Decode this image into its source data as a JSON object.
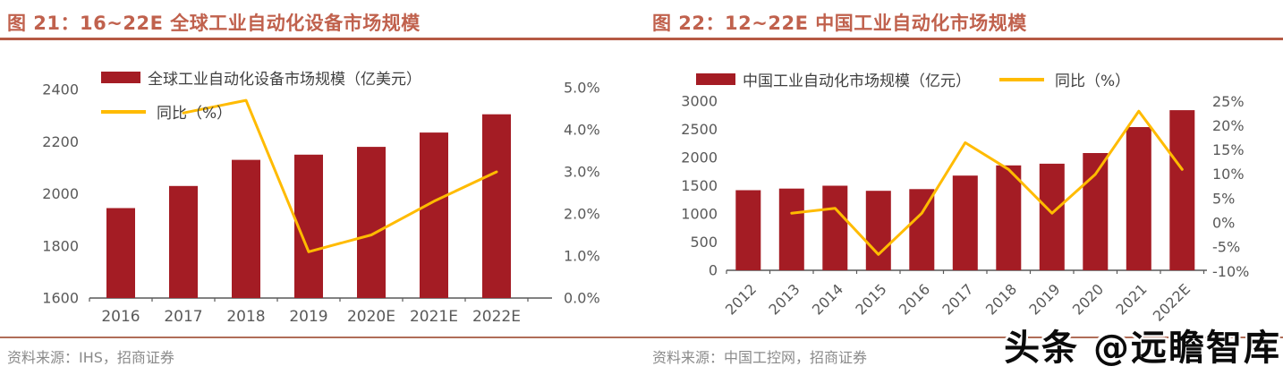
{
  "page": {
    "watermark": "头条 @远瞻智库"
  },
  "colors": {
    "bar": "#a41c24",
    "line": "#ffbb00",
    "title": "#c0614d",
    "title_rule": "#b55a44",
    "axis": "#595959",
    "source_text": "#8a8a8a",
    "source_rule": "#b06d58"
  },
  "charts": [
    {
      "title": "图 21：16~22E 全球工业自动化设备市场规模",
      "source": "资料来源：IHS，招商证券",
      "legend": {
        "bar": "全球工业自动化设备市场规模（亿美元）",
        "line": "同比（%）"
      },
      "chart_data": {
        "type": "bar",
        "categories": [
          "2016",
          "2017",
          "2018",
          "2019",
          "2020E",
          "2021E",
          "2022E"
        ],
        "series": [
          {
            "name": "全球工业自动化设备市场规模（亿美元）",
            "type": "bar",
            "axis": "left",
            "values": [
              1945,
              2030,
              2130,
              2150,
              2180,
              2235,
              2305
            ]
          },
          {
            "name": "同比（%）",
            "type": "line",
            "axis": "right",
            "values": [
              null,
              4.4,
              4.7,
              1.1,
              1.5,
              2.3,
              3.0
            ]
          }
        ],
        "left_axis": {
          "min": 1600,
          "max": 2400,
          "ticks": [
            1600,
            1800,
            2000,
            2200,
            2400
          ],
          "tick_labels": [
            "1600",
            "1800",
            "2000",
            "2200",
            "2400"
          ]
        },
        "right_axis": {
          "min": 0,
          "max": 5,
          "ticks": [
            0,
            1,
            2,
            3,
            4,
            5
          ],
          "tick_labels": [
            "0.0%",
            "1.0%",
            "2.0%",
            "3.0%",
            "4.0%",
            "5.0%"
          ]
        },
        "grid": false,
        "legend_position": "top-left-two-rows"
      }
    },
    {
      "title": "图 22：12~22E 中国工业自动化市场规模",
      "source": "资料来源：中国工控网，招商证券",
      "legend": {
        "bar": "中国工业自动化市场规模（亿元）",
        "line": "同比（%）"
      },
      "chart_data": {
        "type": "bar",
        "categories": [
          "2012",
          "2013",
          "2014",
          "2015",
          "2016",
          "2017",
          "2018",
          "2019",
          "2020",
          "2021",
          "2022E"
        ],
        "series": [
          {
            "name": "中国工业自动化市场规模（亿元）",
            "type": "bar",
            "axis": "left",
            "values": [
              1420,
              1450,
              1500,
              1410,
              1440,
              1680,
              1860,
              1890,
              2080,
              2540,
              2840
            ]
          },
          {
            "name": "同比（%）",
            "type": "line",
            "axis": "right",
            "values": [
              null,
              2,
              3,
              -6.5,
              2,
              16.5,
              11,
              2,
              10,
              23,
              11
            ]
          }
        ],
        "left_axis": {
          "min": 0,
          "max": 3000,
          "ticks": [
            0,
            500,
            1000,
            1500,
            2000,
            2500,
            3000
          ],
          "tick_labels": [
            "0",
            "500",
            "1000",
            "1500",
            "2000",
            "2500",
            "3000"
          ]
        },
        "right_axis": {
          "min": -10,
          "max": 25,
          "ticks": [
            -10,
            -5,
            0,
            5,
            10,
            15,
            20,
            25
          ],
          "tick_labels": [
            "-10%",
            "-5%",
            "0%",
            "5%",
            "10%",
            "15%",
            "20%",
            "25%"
          ]
        },
        "grid": false,
        "legend_position": "top-single-row"
      }
    }
  ]
}
